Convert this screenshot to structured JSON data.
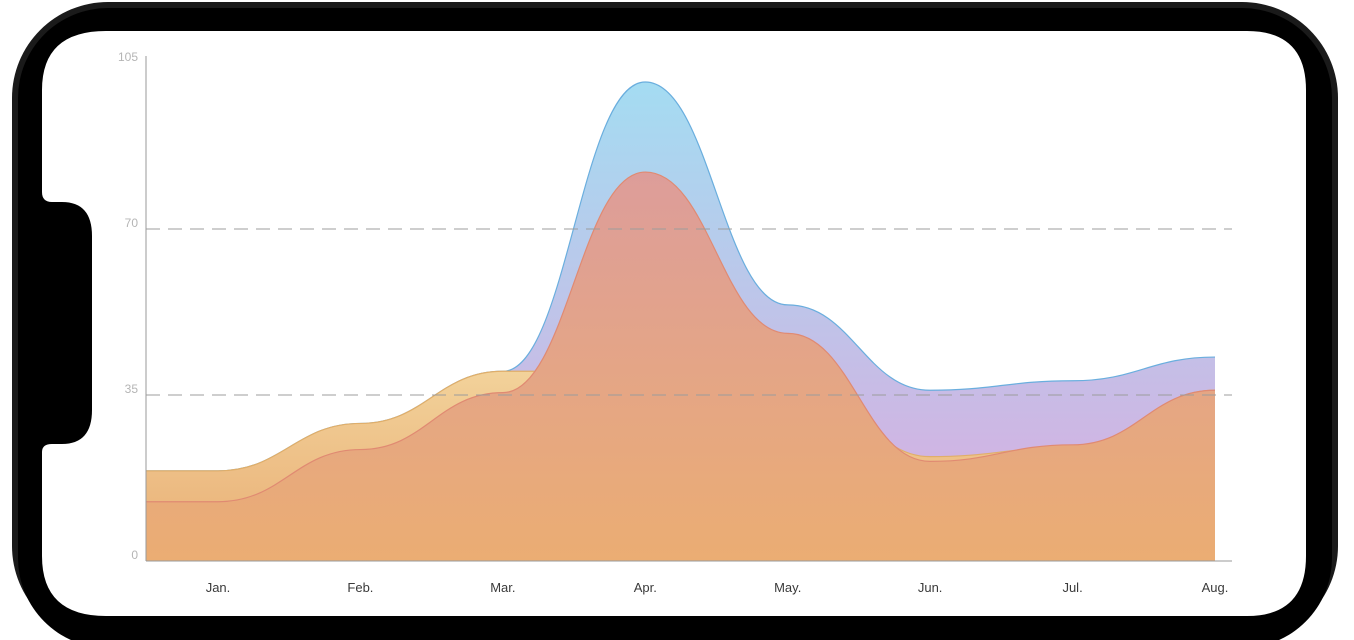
{
  "chart_data": {
    "type": "area",
    "categories": [
      "Jan.",
      "Feb.",
      "Mar.",
      "Apr.",
      "May.",
      "Jun.",
      "Jul.",
      "Aug."
    ],
    "ylim": [
      0,
      105
    ],
    "yticks": [
      0,
      35,
      70,
      105
    ],
    "reference_lines": [
      35,
      70
    ],
    "grid": false,
    "legend": "none",
    "series": [
      {
        "values": [
          19,
          29,
          40,
          101,
          54,
          36,
          38,
          43
        ],
        "colors": [
          "#a4dcf2",
          "#dcaadf"
        ]
      },
      {
        "values": [
          19,
          29,
          40,
          40,
          40,
          22,
          24,
          36
        ],
        "colors": [
          "#f2d29a",
          "#e9ad74"
        ]
      },
      {
        "values": [
          12.5,
          23.5,
          35.5,
          82,
          48,
          21,
          24.5,
          36
        ],
        "colors": [
          "#dd9d9a",
          "#ebad73"
        ]
      }
    ]
  }
}
